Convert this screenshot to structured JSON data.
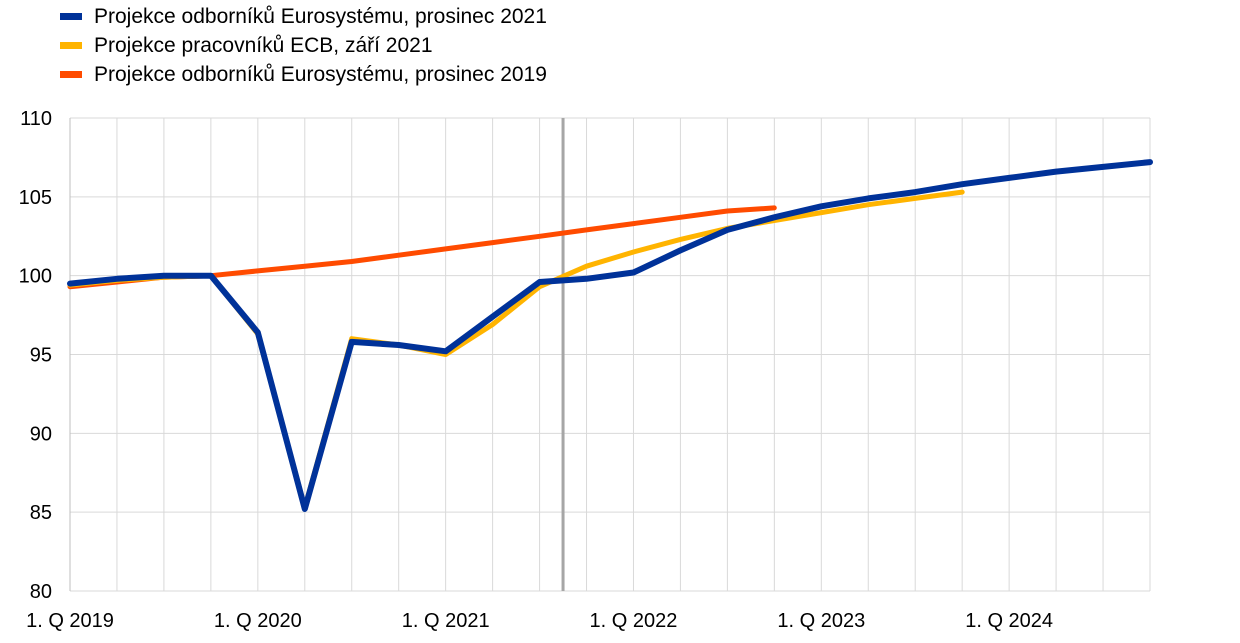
{
  "chart_data": {
    "type": "line",
    "title": "",
    "xlabel": "",
    "ylabel": "",
    "ylim": [
      80,
      110
    ],
    "yticks": [
      80,
      85,
      90,
      95,
      100,
      105,
      110
    ],
    "grid": true,
    "legend_position": "top-left",
    "x_tick_labels": [
      "1. Q 2019",
      "1. Q 2020",
      "1. Q 2021",
      "1. Q 2022",
      "1. Q 2023",
      "1. Q 2024"
    ],
    "quarters": [
      "2019Q1",
      "2019Q2",
      "2019Q3",
      "2019Q4",
      "2020Q1",
      "2020Q2",
      "2020Q3",
      "2020Q4",
      "2021Q1",
      "2021Q2",
      "2021Q3",
      "2021Q4",
      "2022Q1",
      "2022Q2",
      "2022Q3",
      "2022Q4",
      "2023Q1",
      "2023Q2",
      "2023Q3",
      "2023Q4",
      "2024Q1",
      "2024Q2",
      "2024Q3",
      "2024Q4"
    ],
    "vertical_marker": "2021Q3",
    "series": [
      {
        "name": "Projekce odborníků Eurosystému, prosinec 2021",
        "color": "#003299",
        "values": [
          99.5,
          99.8,
          100.0,
          100.0,
          96.4,
          85.2,
          95.8,
          95.6,
          95.2,
          97.4,
          99.6,
          99.8,
          100.2,
          101.6,
          102.9,
          103.7,
          104.4,
          104.9,
          105.3,
          105.8,
          106.2,
          106.6,
          106.9,
          107.2
        ]
      },
      {
        "name": "Projekce pracovníků ECB, září 2021",
        "color": "#FFB400",
        "values": [
          99.4,
          99.7,
          99.9,
          100.0,
          96.3,
          85.3,
          96.0,
          95.6,
          95.0,
          96.9,
          99.3,
          100.6,
          101.5,
          102.3,
          103.0,
          103.5,
          104.0,
          104.5,
          104.9,
          105.3,
          null,
          null,
          null,
          null
        ]
      },
      {
        "name": "Projekce odborníků Eurosystému, prosinec 2019",
        "color": "#FF4B00",
        "values": [
          99.3,
          99.6,
          99.9,
          100.0,
          100.3,
          100.6,
          100.9,
          101.3,
          101.7,
          102.1,
          102.5,
          102.9,
          103.3,
          103.7,
          104.1,
          104.3,
          null,
          null,
          null,
          null,
          null,
          null,
          null,
          null
        ]
      }
    ]
  }
}
